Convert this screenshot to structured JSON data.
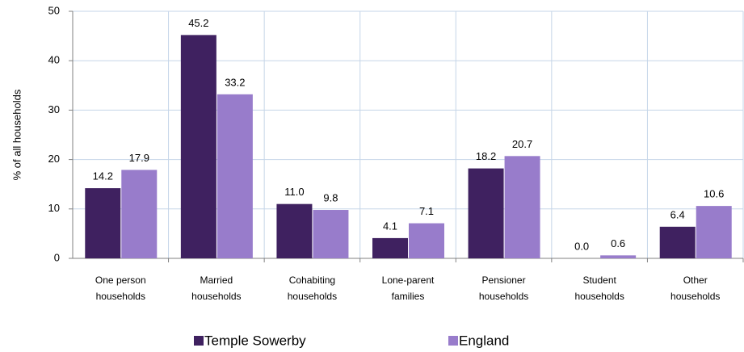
{
  "chart_data": {
    "type": "bar",
    "y_label": "% of all households",
    "categories": [
      [
        "One person",
        "households"
      ],
      [
        "Married",
        "households"
      ],
      [
        "Cohabiting",
        "households"
      ],
      [
        "Lone-parent",
        "families"
      ],
      [
        "Pensioner",
        "households"
      ],
      [
        "Student",
        "households"
      ],
      [
        "Other",
        "households"
      ]
    ],
    "series": [
      {
        "name": "Temple Sowerby",
        "color": "#3f2160",
        "values": [
          14.2,
          45.2,
          11.0,
          4.1,
          18.2,
          0.0,
          6.4
        ],
        "value_labels": [
          "14.2",
          "45.2",
          "11.0",
          "4.1",
          "18.2",
          "0.0",
          "6.4"
        ]
      },
      {
        "name": "England",
        "color": "#987ccb",
        "values": [
          17.9,
          33.2,
          9.8,
          7.1,
          20.7,
          0.6,
          10.6
        ],
        "value_labels": [
          "17.9",
          "33.2",
          "9.8",
          "7.1",
          "20.7",
          "0.6",
          "10.6"
        ]
      }
    ],
    "ylim": [
      0,
      50
    ],
    "yticks": [
      0,
      10,
      20,
      30,
      40,
      50
    ],
    "grid": true,
    "legend": "bottom"
  }
}
